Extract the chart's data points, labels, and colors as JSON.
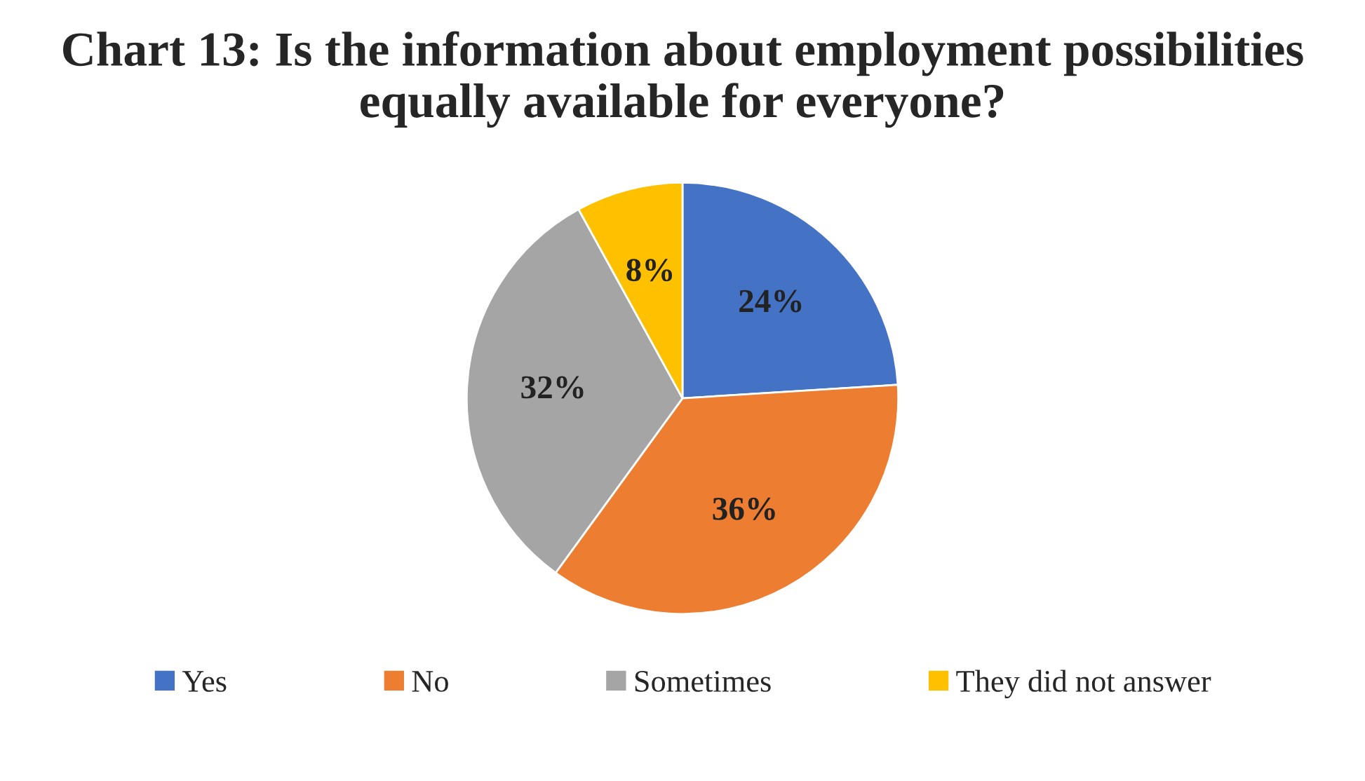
{
  "chart_data": {
    "type": "pie",
    "title": "Chart 13: Is the information about employment possibilities equally available for everyone?",
    "categories": [
      "Yes",
      "No",
      "Sometimes",
      "They did not answer"
    ],
    "values": [
      24,
      36,
      32,
      8
    ],
    "colors": [
      "#4472c4",
      "#ed7d31",
      "#a5a5a5",
      "#ffc000"
    ],
    "value_labels": [
      "24%",
      "36%",
      "32%",
      "8%"
    ],
    "legend": "bottom"
  }
}
